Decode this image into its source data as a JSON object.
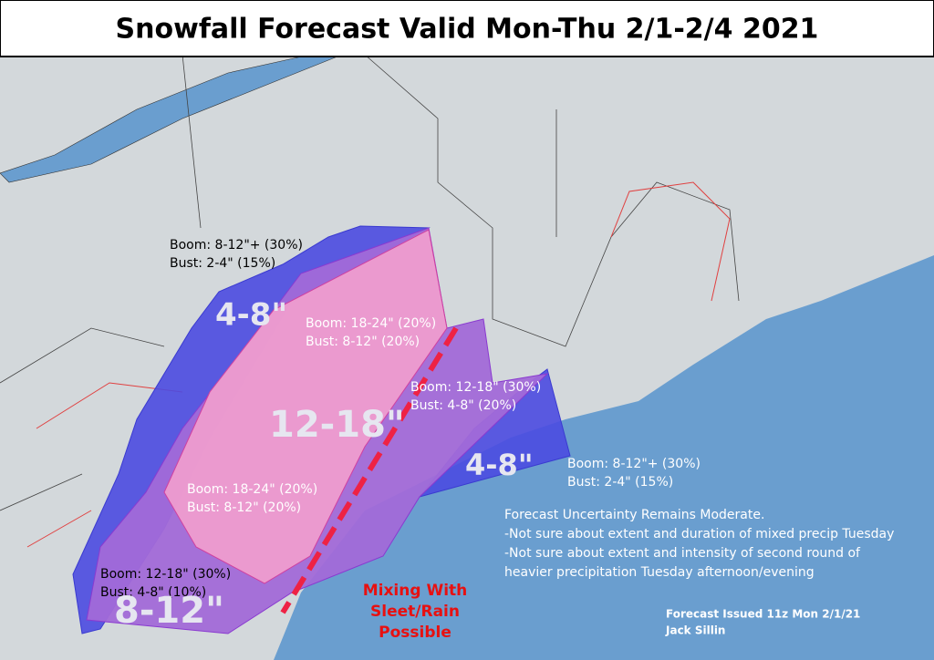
{
  "title": "Snowfall Forecast Valid Mon-Thu 2/1-2/4 2021",
  "zone_labels": [
    "4-8\"",
    "12-18\"",
    "4-8\"",
    "8-12\""
  ],
  "scenarios": [
    {
      "boom": "Boom: 8-12\"+ (30%)",
      "bust": "Bust: 2-4\" (15%)"
    },
    {
      "boom": "Boom: 18-24\" (20%)",
      "bust": "Bust: 8-12\" (20%)"
    },
    {
      "boom": "Boom: 12-18\" (30%)",
      "bust": "Bust: 4-8\" (20%)"
    },
    {
      "boom": "Boom: 8-12\"+ (30%)",
      "bust": "Bust: 2-4\" (15%)"
    },
    {
      "boom": "Boom: 18-24\" (20%)",
      "bust": "Bust: 8-12\" (20%)"
    },
    {
      "boom": "Boom: 12-18\" (30%)",
      "bust": "Bust: 4-8\" (10%)"
    }
  ],
  "mixing_note": [
    "Mixing With",
    "Sleet/Rain",
    "Possible"
  ],
  "notes": [
    "Forecast Uncertainty Remains Moderate.",
    "-Not sure about extent and duration of mixed precip Tuesday",
    "-Not sure about extent and intensity of second round of",
    "heavier precipitation Tuesday afternoon/evening"
  ],
  "credits": [
    "Forecast Issued 11z Mon 2/1/21",
    "Jack Sillin"
  ]
}
